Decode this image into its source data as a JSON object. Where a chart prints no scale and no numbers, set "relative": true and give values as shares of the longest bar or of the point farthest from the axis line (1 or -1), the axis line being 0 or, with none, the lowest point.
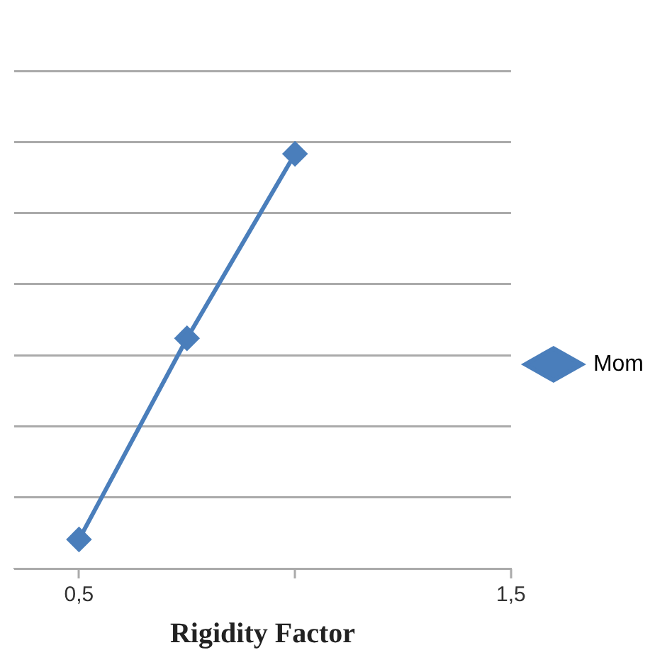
{
  "chart_data": {
    "type": "line",
    "xlabel": "Rigidity Factor",
    "x": [
      0.5,
      0.75,
      1.0
    ],
    "series": [
      {
        "name": "Mom",
        "color": "#4a7ebb",
        "values": [
          0.07,
          0.555,
          1
        ]
      }
    ],
    "relative": true,
    "xlim": [
      0.35,
      1.5
    ],
    "xticks": [
      {
        "value": 0.5,
        "label": "0,5"
      },
      {
        "value": 1,
        "label": null
      },
      {
        "value": 1.5,
        "label": "1,5"
      }
    ],
    "grid": "y",
    "legend": "right",
    "marker": "diamond",
    "line_style": "solid"
  }
}
